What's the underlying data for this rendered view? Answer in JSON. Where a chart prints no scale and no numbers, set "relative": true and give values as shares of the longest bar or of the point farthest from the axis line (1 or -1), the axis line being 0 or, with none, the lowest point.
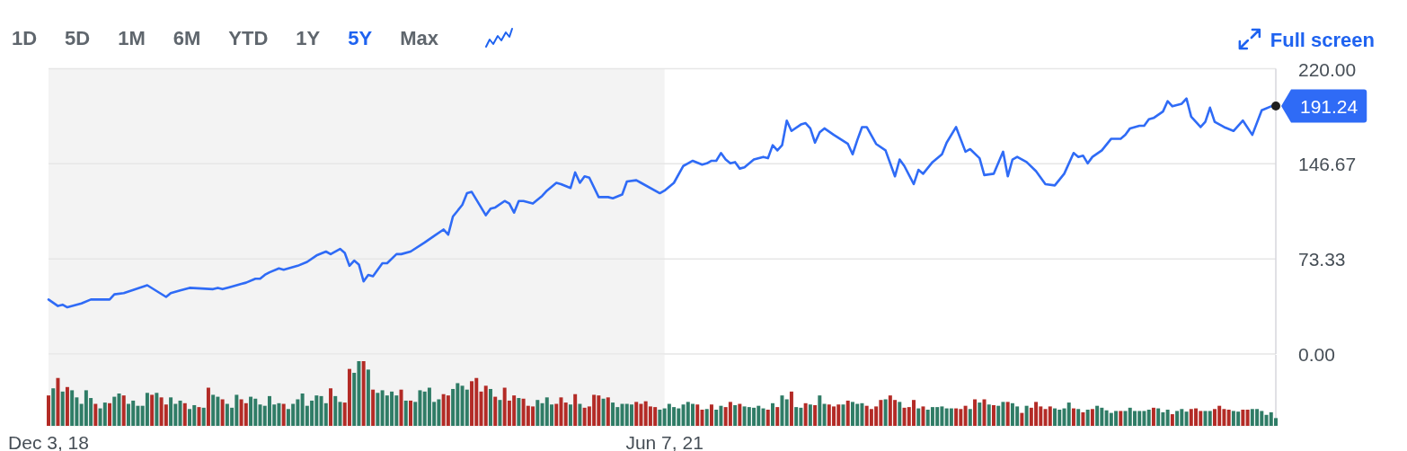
{
  "chart_data": [
    {
      "type": "other",
      "categories": [
        "1D",
        "5D",
        "1M",
        "6M",
        "YTD",
        "1Y",
        "5Y",
        "Max"
      ],
      "colors": [
        "#5f666d",
        "#5f666d",
        "#5f666d",
        "#5f666d",
        "#5f666d",
        "#5f666d",
        "#1f63f0",
        "#5f666d"
      ],
      "annotations": [
        "Full screen"
      ]
    },
    {
      "type": "line",
      "color": "#2f6bf6",
      "x": [
        "2018-12-03",
        "2018-12-17",
        "2018-12-24",
        "2018-12-31",
        "2019-01-21",
        "2019-02-04",
        "2019-03-04",
        "2019-03-11",
        "2019-03-25",
        "2019-04-29",
        "2019-05-27",
        "2019-06-03",
        "2019-06-17",
        "2019-07-01",
        "2019-08-05",
        "2019-08-12",
        "2019-08-19",
        "2019-09-02",
        "2019-09-16",
        "2019-09-23",
        "2019-10-07",
        "2019-10-14",
        "2019-10-21",
        "2019-10-28",
        "2019-11-11",
        "2019-11-18",
        "2019-12-09",
        "2019-12-23",
        "2020-01-06",
        "2020-01-20",
        "2020-01-27",
        "2020-02-10",
        "2020-02-17",
        "2020-02-24",
        "2020-03-02",
        "2020-03-09",
        "2020-03-16",
        "2020-03-23",
        "2020-03-30",
        "2020-04-13",
        "2020-04-20",
        "2020-05-04",
        "2020-05-11",
        "2020-05-25",
        "2020-06-15",
        "2020-06-29",
        "2020-07-13",
        "2020-07-20",
        "2020-07-27",
        "2020-08-10",
        "2020-08-17",
        "2020-08-24",
        "2020-09-14",
        "2020-09-21",
        "2020-09-28",
        "2020-10-12",
        "2020-10-19",
        "2020-10-26",
        "2020-11-02",
        "2020-11-09",
        "2020-11-23",
        "2020-12-07",
        "2020-12-14",
        "2020-12-28",
        "2021-01-04",
        "2021-01-18",
        "2021-01-25",
        "2021-02-01",
        "2021-02-08",
        "2021-02-15",
        "2021-03-01",
        "2021-03-15",
        "2021-03-22",
        "2021-04-05",
        "2021-04-12",
        "2021-04-26",
        "2021-05-03",
        "2021-05-31",
        "2021-06-07",
        "2021-06-21",
        "2021-07-05",
        "2021-07-19",
        "2021-08-02",
        "2021-08-09",
        "2021-08-16",
        "2021-08-23",
        "2021-08-30",
        "2021-09-06",
        "2021-09-13",
        "2021-09-20",
        "2021-09-27",
        "2021-10-04",
        "2021-10-18",
        "2021-11-01",
        "2021-11-08",
        "2021-11-15",
        "2021-11-22",
        "2021-11-29",
        "2021-12-06",
        "2021-12-13",
        "2021-12-27",
        "2022-01-03",
        "2022-01-10",
        "2022-01-17",
        "2022-01-24",
        "2022-01-31",
        "2022-02-14",
        "2022-03-07",
        "2022-03-14",
        "2022-03-21",
        "2022-03-28",
        "2022-04-04",
        "2022-04-18",
        "2022-05-02",
        "2022-05-16",
        "2022-05-23",
        "2022-05-30",
        "2022-06-13",
        "2022-06-20",
        "2022-06-27",
        "2022-07-11",
        "2022-07-25",
        "2022-08-01",
        "2022-08-15",
        "2022-08-29",
        "2022-09-05",
        "2022-09-19",
        "2022-09-26",
        "2022-10-10",
        "2022-10-24",
        "2022-10-31",
        "2022-11-07",
        "2022-11-14",
        "2022-11-28",
        "2022-12-12",
        "2022-12-26",
        "2023-01-09",
        "2023-01-23",
        "2023-02-06",
        "2023-02-13",
        "2023-02-20",
        "2023-02-27",
        "2023-03-06",
        "2023-03-20",
        "2023-04-03",
        "2023-04-17",
        "2023-04-24",
        "2023-05-01",
        "2023-05-15",
        "2023-05-22",
        "2023-05-29",
        "2023-06-05",
        "2023-06-19",
        "2023-06-26",
        "2023-07-03",
        "2023-07-17",
        "2023-07-24",
        "2023-07-31",
        "2023-08-14",
        "2023-08-21",
        "2023-08-28",
        "2023-09-04",
        "2023-09-18",
        "2023-10-02",
        "2023-10-16",
        "2023-10-30",
        "2023-11-13",
        "2023-11-27",
        "2023-12-04"
      ],
      "values": [
        42,
        37,
        38,
        36,
        39,
        42,
        42,
        46,
        47,
        53,
        44,
        47,
        49,
        51,
        50,
        51,
        50,
        52,
        54,
        55,
        58,
        58,
        61,
        63,
        66,
        65,
        68,
        71,
        76,
        79,
        77,
        81,
        78,
        68,
        72,
        69,
        56,
        61,
        60,
        70,
        70,
        77,
        77,
        79,
        86,
        91,
        96,
        92,
        106,
        115,
        124,
        125,
        107,
        112,
        113,
        118,
        116,
        109,
        118,
        118,
        116,
        122,
        126,
        132,
        131,
        128,
        140,
        132,
        137,
        136,
        121,
        121,
        120,
        123,
        133,
        134,
        132,
        124,
        126,
        132,
        145,
        149,
        146,
        147,
        149,
        149,
        155,
        150,
        147,
        148,
        143,
        144,
        150,
        152,
        151,
        161,
        157,
        161,
        180,
        172,
        177,
        178,
        174,
        163,
        171,
        174,
        169,
        162,
        154,
        165,
        175,
        175,
        162,
        157,
        137,
        150,
        145,
        131,
        142,
        139,
        148,
        154,
        163,
        175,
        156,
        158,
        151,
        138,
        139,
        156,
        137,
        150,
        152,
        148,
        141,
        131,
        130,
        139,
        155,
        152,
        153,
        147,
        152,
        157,
        166,
        166,
        169,
        174,
        176,
        176,
        181,
        182,
        187,
        195,
        191,
        193,
        197,
        183,
        175,
        179,
        190,
        179,
        175,
        172,
        180,
        169,
        188,
        191,
        191.24
      ],
      "xlim": [
        "2018-12-03",
        "2023-12-04"
      ],
      "ylim": [
        0,
        220
      ],
      "yticks": [
        {
          "value": 0,
          "label": "0.00"
        },
        {
          "value": 73.33,
          "label": "73.33"
        },
        {
          "value": 146.67,
          "label": "146.67"
        },
        {
          "value": 220,
          "label": "220.00"
        }
      ],
      "grid": "y",
      "tick_labels": "y",
      "bands": [
        {
          "axis": "x",
          "from": "2018-12-03",
          "to": "2021-06-07",
          "color": "#f3f3f3"
        }
      ],
      "annotations": [
        {
          "text": "191.24",
          "x": "2023-12-04",
          "y": 191.24
        }
      ]
    },
    {
      "type": "bar",
      "relative": true,
      "x": [
        "2018-12-03",
        "2018-12-10",
        "2018-12-17",
        "2018-12-24",
        "2018-12-31",
        "2019-01-07",
        "2019-01-14",
        "2019-01-21",
        "2019-01-28",
        "2019-02-04",
        "2019-02-11",
        "2019-02-18",
        "2019-02-25",
        "2019-03-04",
        "2019-03-11",
        "2019-03-18",
        "2019-03-25",
        "2019-04-01",
        "2019-04-08",
        "2019-04-15",
        "2019-04-22",
        "2019-04-29",
        "2019-05-06",
        "2019-05-13",
        "2019-05-20",
        "2019-05-27",
        "2019-06-03",
        "2019-06-10",
        "2019-06-17",
        "2019-06-24",
        "2019-07-01",
        "2019-07-08",
        "2019-07-15",
        "2019-07-22",
        "2019-07-29",
        "2019-08-05",
        "2019-08-12",
        "2019-08-19",
        "2019-08-26",
        "2019-09-02",
        "2019-09-09",
        "2019-09-16",
        "2019-09-23",
        "2019-09-30",
        "2019-10-07",
        "2019-10-14",
        "2019-10-21",
        "2019-10-28",
        "2019-11-04",
        "2019-11-11",
        "2019-11-18",
        "2019-11-25",
        "2019-12-02",
        "2019-12-09",
        "2019-12-16",
        "2019-12-23",
        "2019-12-30",
        "2020-01-06",
        "2020-01-13",
        "2020-01-20",
        "2020-01-27",
        "2020-02-03",
        "2020-02-10",
        "2020-02-17",
        "2020-02-24",
        "2020-03-02",
        "2020-03-09",
        "2020-03-16",
        "2020-03-23",
        "2020-03-30",
        "2020-04-06",
        "2020-04-13",
        "2020-04-20",
        "2020-04-27",
        "2020-05-04",
        "2020-05-11",
        "2020-05-18",
        "2020-05-25",
        "2020-06-01",
        "2020-06-08",
        "2020-06-15",
        "2020-06-22",
        "2020-06-29",
        "2020-07-06",
        "2020-07-13",
        "2020-07-20",
        "2020-07-27",
        "2020-08-03",
        "2020-08-10",
        "2020-08-17",
        "2020-08-24",
        "2020-08-31",
        "2020-09-07",
        "2020-09-14",
        "2020-09-21",
        "2020-09-28",
        "2020-10-05",
        "2020-10-12",
        "2020-10-19",
        "2020-10-26",
        "2020-11-02",
        "2020-11-09",
        "2020-11-16",
        "2020-11-23",
        "2020-11-30",
        "2020-12-07",
        "2020-12-14",
        "2020-12-21",
        "2020-12-28",
        "2021-01-04",
        "2021-01-11",
        "2021-01-18",
        "2021-01-25",
        "2021-02-01",
        "2021-02-08",
        "2021-02-15",
        "2021-02-22",
        "2021-03-01",
        "2021-03-08",
        "2021-03-15",
        "2021-03-22",
        "2021-03-29",
        "2021-04-05",
        "2021-04-12",
        "2021-04-19",
        "2021-04-26",
        "2021-05-03",
        "2021-05-10",
        "2021-05-17",
        "2021-05-24",
        "2021-05-31",
        "2021-06-07",
        "2021-06-14",
        "2021-06-21",
        "2021-06-28",
        "2021-07-05",
        "2021-07-12",
        "2021-07-19",
        "2021-07-26",
        "2021-08-02",
        "2021-08-09",
        "2021-08-16",
        "2021-08-23",
        "2021-08-30",
        "2021-09-06",
        "2021-09-13",
        "2021-09-20",
        "2021-09-27",
        "2021-10-04",
        "2021-10-11",
        "2021-10-18",
        "2021-10-25",
        "2021-11-01",
        "2021-11-08",
        "2021-11-15",
        "2021-11-22",
        "2021-11-29",
        "2021-12-06",
        "2021-12-13",
        "2021-12-20",
        "2021-12-27",
        "2022-01-03",
        "2022-01-10",
        "2022-01-17",
        "2022-01-24",
        "2022-01-31",
        "2022-02-07",
        "2022-02-14",
        "2022-02-21",
        "2022-02-28",
        "2022-03-07",
        "2022-03-14",
        "2022-03-21",
        "2022-03-28",
        "2022-04-04",
        "2022-04-11",
        "2022-04-18",
        "2022-04-25",
        "2022-05-02",
        "2022-05-09",
        "2022-05-16",
        "2022-05-23",
        "2022-05-30",
        "2022-06-06",
        "2022-06-13",
        "2022-06-20",
        "2022-06-27",
        "2022-07-04",
        "2022-07-11",
        "2022-07-18",
        "2022-07-25",
        "2022-08-01",
        "2022-08-08",
        "2022-08-15",
        "2022-08-22",
        "2022-08-29",
        "2022-09-05",
        "2022-09-12",
        "2022-09-19",
        "2022-09-26",
        "2022-10-03",
        "2022-10-10",
        "2022-10-17",
        "2022-10-24",
        "2022-10-31",
        "2022-11-07",
        "2022-11-14",
        "2022-11-21",
        "2022-11-28",
        "2022-12-05",
        "2022-12-12",
        "2022-12-19",
        "2022-12-26",
        "2023-01-02",
        "2023-01-09",
        "2023-01-16",
        "2023-01-23",
        "2023-01-30",
        "2023-02-06",
        "2023-02-13",
        "2023-02-20",
        "2023-02-27",
        "2023-03-06",
        "2023-03-13",
        "2023-03-20",
        "2023-03-27",
        "2023-04-03",
        "2023-04-10",
        "2023-04-17",
        "2023-04-24",
        "2023-05-01",
        "2023-05-08",
        "2023-05-15",
        "2023-05-22",
        "2023-05-29",
        "2023-06-05",
        "2023-06-12",
        "2023-06-19",
        "2023-06-26",
        "2023-07-03",
        "2023-07-10",
        "2023-07-17",
        "2023-07-24",
        "2023-07-31",
        "2023-08-07",
        "2023-08-14",
        "2023-08-21",
        "2023-08-28",
        "2023-09-04",
        "2023-09-11",
        "2023-09-18",
        "2023-09-25",
        "2023-10-02",
        "2023-10-09",
        "2023-10-16",
        "2023-10-23",
        "2023-10-30",
        "2023-11-06",
        "2023-11-13",
        "2023-11-20",
        "2023-11-27",
        "2023-12-04"
      ],
      "values": [
        0.47,
        0.58,
        0.74,
        0.53,
        0.6,
        0.55,
        0.44,
        0.34,
        0.55,
        0.43,
        0.34,
        0.27,
        0.36,
        0.35,
        0.45,
        0.5,
        0.47,
        0.34,
        0.39,
        0.31,
        0.31,
        0.51,
        0.48,
        0.51,
        0.44,
        0.33,
        0.44,
        0.34,
        0.39,
        0.35,
        0.26,
        0.32,
        0.29,
        0.28,
        0.59,
        0.48,
        0.45,
        0.41,
        0.34,
        0.28,
        0.48,
        0.41,
        0.35,
        0.45,
        0.42,
        0.33,
        0.31,
        0.46,
        0.33,
        0.35,
        0.34,
        0.26,
        0.34,
        0.41,
        0.5,
        0.31,
        0.39,
        0.47,
        0.46,
        0.35,
        0.58,
        0.46,
        0.37,
        0.36,
        0.88,
        0.82,
        1,
        1,
        0.87,
        0.56,
        0.51,
        0.55,
        0.47,
        0.53,
        0.47,
        0.56,
        0.39,
        0.39,
        0.37,
        0.55,
        0.53,
        0.59,
        0.37,
        0.41,
        0.49,
        0.47,
        0.57,
        0.66,
        0.62,
        0.56,
        0.69,
        0.74,
        0.53,
        0.62,
        0.57,
        0.45,
        0.4,
        0.59,
        0.39,
        0.47,
        0.43,
        0.42,
        0.31,
        0.3,
        0.4,
        0.35,
        0.44,
        0.33,
        0.34,
        0.44,
        0.36,
        0.33,
        0.49,
        0.34,
        0.28,
        0.3,
        0.48,
        0.47,
        0.42,
        0.44,
        0.36,
        0.29,
        0.34,
        0.34,
        0.33,
        0.37,
        0.34,
        0.38,
        0.3,
        0.29,
        0.25,
        0.27,
        0.34,
        0.29,
        0.27,
        0.33,
        0.37,
        0.34,
        0.33,
        0.25,
        0.26,
        0.33,
        0.25,
        0.31,
        0.29,
        0.37,
        0.32,
        0.34,
        0.3,
        0.29,
        0.28,
        0.31,
        0.27,
        0.25,
        0.35,
        0.29,
        0.47,
        0.41,
        0.53,
        0.29,
        0.28,
        0.35,
        0.33,
        0.32,
        0.47,
        0.34,
        0.33,
        0.3,
        0.33,
        0.33,
        0.39,
        0.37,
        0.34,
        0.35,
        0.31,
        0.26,
        0.3,
        0.4,
        0.41,
        0.47,
        0.4,
        0.37,
        0.28,
        0.29,
        0.4,
        0.27,
        0.3,
        0.25,
        0.29,
        0.29,
        0.3,
        0.27,
        0.27,
        0.27,
        0.26,
        0.31,
        0.26,
        0.41,
        0.36,
        0.41,
        0.33,
        0.32,
        0.31,
        0.37,
        0.37,
        0.35,
        0.3,
        0.2,
        0.31,
        0.28,
        0.37,
        0.3,
        0.26,
        0.3,
        0.27,
        0.25,
        0.27,
        0.36,
        0.27,
        0.26,
        0.21,
        0.25,
        0.26,
        0.31,
        0.28,
        0.24,
        0.2,
        0.23,
        0.23,
        0.23,
        0.28,
        0.23,
        0.23,
        0.23,
        0.25,
        0.28,
        0.27,
        0.21,
        0.25,
        0.18,
        0.23,
        0.26,
        0.22,
        0.26,
        0.27,
        0.23,
        0.23,
        0.23,
        0.26,
        0.31,
        0.26,
        0.25,
        0.23,
        0.22,
        0.25,
        0.25,
        0.26,
        0.26,
        0.23,
        0.17,
        0.21,
        0.12
      ],
      "colors": [
        "#b32b26",
        "#2f7c66",
        "#b32b26",
        "#2f7c66",
        "#b32b26",
        "#2f7c66",
        "#2f7c66",
        "#2f7c66",
        "#2f7c66",
        "#2f7c66",
        "#b32b26",
        "#2f7c66",
        "#2f7c66",
        "#b32b26",
        "#2f7c66",
        "#2f7c66",
        "#b32b26",
        "#2f7c66",
        "#2f7c66",
        "#2f7c66",
        "#2f7c66",
        "#2f7c66",
        "#b32b26",
        "#2f7c66",
        "#b32b26",
        "#b32b26",
        "#2f7c66",
        "#2f7c66",
        "#2f7c66",
        "#b32b26",
        "#2f7c66",
        "#2f7c66",
        "#b32b26",
        "#2f7c66",
        "#b32b26",
        "#2f7c66",
        "#2f7c66",
        "#b32b26",
        "#2f7c66",
        "#2f7c66",
        "#2f7c66",
        "#b32b26",
        "#b32b26",
        "#2f7c66",
        "#2f7c66",
        "#2f7c66",
        "#2f7c66",
        "#2f7c66",
        "#2f7c66",
        "#2f7c66",
        "#b32b26",
        "#2f7c66",
        "#2f7c66",
        "#2f7c66",
        "#2f7c66",
        "#2f7c66",
        "#2f7c66",
        "#2f7c66",
        "#2f7c66",
        "#2f7c66",
        "#b32b26",
        "#2f7c66",
        "#2f7c66",
        "#b32b26",
        "#b32b26",
        "#2f7c66",
        "#2f7c66",
        "#b32b26",
        "#2f7c66",
        "#b32b26",
        "#2f7c66",
        "#2f7c66",
        "#2f7c66",
        "#2f7c66",
        "#2f7c66",
        "#b32b26",
        "#2f7c66",
        "#b32b26",
        "#2f7c66",
        "#2f7c66",
        "#2f7c66",
        "#2f7c66",
        "#2f7c66",
        "#2f7c66",
        "#b32b26",
        "#b32b26",
        "#2f7c66",
        "#2f7c66",
        "#2f7c66",
        "#2f7c66",
        "#b32b26",
        "#b32b26",
        "#b32b26",
        "#b32b26",
        "#2f7c66",
        "#b32b26",
        "#2f7c66",
        "#b32b26",
        "#b32b26",
        "#b32b26",
        "#2f7c66",
        "#b32b26",
        "#b32b26",
        "#b32b26",
        "#2f7c66",
        "#2f7c66",
        "#2f7c66",
        "#2f7c66",
        "#b32b26",
        "#b32b26",
        "#b32b26",
        "#2f7c66",
        "#b32b26",
        "#2f7c66",
        "#b32b26",
        "#b32b26",
        "#b32b26",
        "#b32b26",
        "#2f7c66",
        "#b32b26",
        "#2f7c66",
        "#2f7c66",
        "#2f7c66",
        "#2f7c66",
        "#2f7c66",
        "#b32b26",
        "#b32b26",
        "#b32b26",
        "#b32b26",
        "#b32b26",
        "#2f7c66",
        "#2f7c66",
        "#2f7c66",
        "#2f7c66",
        "#2f7c66",
        "#2f7c66",
        "#2f7c66",
        "#2f7c66",
        "#b32b26",
        "#b32b26",
        "#2f7c66",
        "#b32b26",
        "#2f7c66",
        "#2f7c66",
        "#b32b26",
        "#b32b26",
        "#2f7c66",
        "#b32b26",
        "#2f7c66",
        "#2f7c66",
        "#2f7c66",
        "#2f7c66",
        "#2f7c66",
        "#b32b26",
        "#2f7c66",
        "#b32b26",
        "#2f7c66",
        "#2f7c66",
        "#b32b26",
        "#2f7c66",
        "#2f7c66",
        "#b32b26",
        "#2f7c66",
        "#b32b26",
        "#2f7c66",
        "#2f7c66",
        "#b32b26",
        "#b32b26",
        "#b32b26",
        "#2f7c66",
        "#b32b26",
        "#2f7c66",
        "#2f7c66",
        "#2f7c66",
        "#b32b26",
        "#b32b26",
        "#b32b26",
        "#b32b26",
        "#2f7c66",
        "#b32b26",
        "#b32b26",
        "#2f7c66",
        "#b32b26",
        "#b32b26",
        "#b32b26",
        "#2f7c66",
        "#b32b26",
        "#2f7c66",
        "#2f7c66",
        "#2f7c66",
        "#2f7c66",
        "#2f7c66",
        "#2f7c66",
        "#b32b26",
        "#b32b26",
        "#b32b26",
        "#2f7c66",
        "#b32b26",
        "#2f7c66",
        "#b32b26",
        "#2f7c66",
        "#b32b26",
        "#2f7c66",
        "#2f7c66",
        "#b32b26",
        "#2f7c66",
        "#2f7c66",
        "#b32b26",
        "#2f7c66",
        "#b32b26",
        "#b32b26",
        "#b32b26",
        "#b32b26",
        "#b32b26",
        "#2f7c66",
        "#2f7c66",
        "#2f7c66",
        "#2f7c66",
        "#b32b26",
        "#2f7c66",
        "#b32b26",
        "#2f7c66",
        "#b32b26",
        "#2f7c66",
        "#2f7c66",
        "#2f7c66",
        "#2f7c66",
        "#2f7c66",
        "#b32b26",
        "#2f7c66",
        "#2f7c66",
        "#2f7c66",
        "#2f7c66",
        "#2f7c66",
        "#2f7c66",
        "#b32b26",
        "#2f7c66",
        "#2f7c66",
        "#2f7c66",
        "#b32b26",
        "#2f7c66",
        "#2f7c66",
        "#2f7c66",
        "#b32b26",
        "#b32b26",
        "#b32b26",
        "#2f7c66",
        "#2f7c66",
        "#b32b26",
        "#b32b26",
        "#b32b26",
        "#b32b26",
        "#2f7c66",
        "#2f7c66",
        "#b32b26",
        "#b32b26",
        "#2f7c66",
        "#2f7c66",
        "#2f7c66",
        "#2f7c66",
        "#2f7c66",
        "#2f7c66"
      ],
      "xlim": [
        "2018-12-03",
        "2023-12-04"
      ],
      "xticks": [
        {
          "value": "2018-12-03",
          "label": "Dec 3, 18"
        },
        {
          "value": "2021-06-07",
          "label": "Jun 7, 21"
        }
      ],
      "tick_labels": "x",
      "bands": [
        {
          "axis": "x",
          "from": "2018-12-03",
          "to": "2021-06-07",
          "color": "#f3f3f3"
        }
      ]
    }
  ]
}
